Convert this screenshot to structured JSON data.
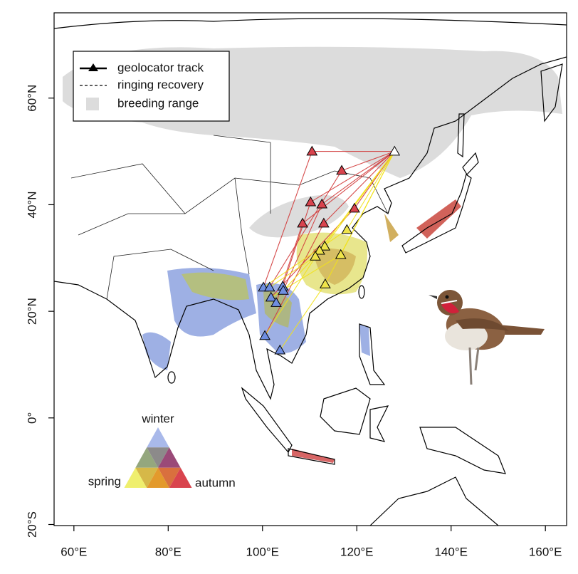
{
  "map": {
    "xlim": [
      55.8,
      164.5
    ],
    "ylim": [
      -20.2,
      76
    ],
    "xticks": [
      {
        "value": 60,
        "label": "60°E"
      },
      {
        "value": 80,
        "label": "80°E"
      },
      {
        "value": 100,
        "label": "100°E"
      },
      {
        "value": 120,
        "label": "120°E"
      },
      {
        "value": 140,
        "label": "140°E"
      },
      {
        "value": 160,
        "label": "160°E"
      }
    ],
    "yticks": [
      {
        "value": -20,
        "label": "20°S"
      },
      {
        "value": 0,
        "label": "0°"
      },
      {
        "value": 20,
        "label": "20°N"
      },
      {
        "value": 40,
        "label": "40°N"
      },
      {
        "value": 60,
        "label": "60°N"
      }
    ]
  },
  "legend": {
    "items": [
      "geolocator track",
      "ringing recovery",
      "breeding range"
    ]
  },
  "ternary_legend": {
    "top": "winter",
    "left": "spring",
    "right": "autumn"
  },
  "sites": {
    "breeding": [
      128,
      50
    ],
    "autumn": [
      [
        110.5,
        50
      ],
      [
        116.8,
        46.4
      ],
      [
        110.2,
        40.5
      ],
      [
        112.6,
        40.1
      ],
      [
        119.5,
        39.3
      ],
      [
        108.5,
        36.5
      ],
      [
        113,
        36.5
      ]
    ],
    "spring": [
      [
        117.9,
        35.3
      ],
      [
        113.2,
        32.2
      ],
      [
        112.1,
        31.4
      ],
      [
        111.2,
        30.3
      ],
      [
        116.6,
        30.6
      ],
      [
        113.3,
        25.1
      ]
    ],
    "winter": [
      [
        100.2,
        24.5
      ],
      [
        101.5,
        24.5
      ],
      [
        104.3,
        24.7
      ],
      [
        104.4,
        23.9
      ],
      [
        101.8,
        22.6
      ],
      [
        102.9,
        21.6
      ],
      [
        100.5,
        15.4
      ],
      [
        103.7,
        12.7
      ]
    ]
  }
}
